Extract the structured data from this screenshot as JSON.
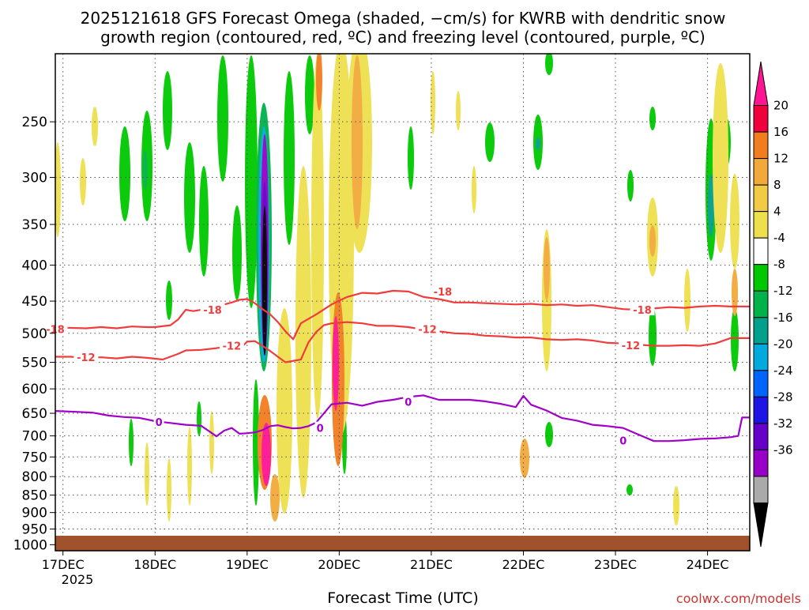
{
  "chart_data": {
    "type": "heatmap",
    "title": "2025121618 GFS Forecast Omega (shaded, −cm/s) for KWRB with dendritic snow",
    "subtitle": "growth region (contoured, red, ºC) and freezing level (contoured, purple, ºC)",
    "xlabel": "Forecast Time (UTC)",
    "ylabel": "",
    "credit": "coolwx.com/models",
    "x_ticks": [
      {
        "label": "17DEC",
        "value": 0
      },
      {
        "label": "18DEC",
        "value": 24
      },
      {
        "label": "19DEC",
        "value": 48
      },
      {
        "label": "20DEC",
        "value": 72
      },
      {
        "label": "21DEC",
        "value": 96
      },
      {
        "label": "22DEC",
        "value": 120
      },
      {
        "label": "23DEC",
        "value": 144
      },
      {
        "label": "24DEC",
        "value": 168
      }
    ],
    "x_year_label": "2025",
    "xlim": [
      -2,
      179
    ],
    "y_ticks": [
      "250",
      "300",
      "350",
      "400",
      "450",
      "500",
      "550",
      "600",
      "650",
      "700",
      "750",
      "800",
      "850",
      "900",
      "950",
      "1000"
    ],
    "ylim": [
      200,
      1020
    ],
    "y_scale": "log-pressure",
    "colorbar": {
      "labels": [
        "20",
        "16",
        "12",
        "8",
        "4",
        "-4",
        "-8",
        "-12",
        "-16",
        "-20",
        "-24",
        "-28",
        "-32",
        "-36"
      ],
      "colors": [
        "#ff1493",
        "#f0003c",
        "#f27d1f",
        "#f2a93a",
        "#f2cb45",
        "#eee04c",
        "#ffffff",
        "#00c800",
        "#00b24a",
        "#00a08c",
        "#00aadc",
        "#0064ff",
        "#1e14e6",
        "#6400c8",
        "#9600c8",
        "#aaaaaa",
        "#000000"
      ]
    },
    "series": [
      {
        "name": "-18 ºC (dendritic growth, red)",
        "label": "-18",
        "color": "#f03c3c",
        "points": [
          [
            -2,
            493
          ],
          [
            0,
            491
          ],
          [
            6,
            492
          ],
          [
            10,
            490
          ],
          [
            14,
            492
          ],
          [
            18,
            489
          ],
          [
            22,
            490
          ],
          [
            24,
            490
          ],
          [
            28,
            487
          ],
          [
            30,
            478
          ],
          [
            32,
            463
          ],
          [
            34,
            465
          ],
          [
            36,
            463
          ],
          [
            40,
            462
          ],
          [
            42,
            455
          ],
          [
            44,
            452
          ],
          [
            46,
            448
          ],
          [
            48,
            447
          ],
          [
            50,
            453
          ],
          [
            52,
            462
          ],
          [
            54,
            470
          ],
          [
            56,
            482
          ],
          [
            58,
            497
          ],
          [
            60,
            510
          ],
          [
            62,
            484
          ],
          [
            66,
            470
          ],
          [
            70,
            455
          ],
          [
            74,
            444
          ],
          [
            78,
            438
          ],
          [
            82,
            439
          ],
          [
            86,
            435
          ],
          [
            90,
            436
          ],
          [
            94,
            444
          ],
          [
            98,
            447
          ],
          [
            102,
            452
          ],
          [
            106,
            452
          ],
          [
            110,
            453
          ],
          [
            114,
            454
          ],
          [
            118,
            455
          ],
          [
            122,
            454
          ],
          [
            126,
            456
          ],
          [
            130,
            455
          ],
          [
            134,
            457
          ],
          [
            138,
            456
          ],
          [
            142,
            459
          ],
          [
            146,
            462
          ],
          [
            150,
            463
          ],
          [
            154,
            461
          ],
          [
            158,
            459
          ],
          [
            162,
            460
          ],
          [
            166,
            458
          ],
          [
            170,
            457
          ],
          [
            174,
            458
          ],
          [
            179,
            458
          ]
        ],
        "labels": [
          [
            -2,
            493
          ],
          [
            39,
            463
          ],
          [
            99,
            436
          ],
          [
            151,
            463
          ]
        ]
      },
      {
        "name": "-12 ºC (dendritic growth, red)",
        "label": "-12",
        "color": "#f03c3c",
        "points": [
          [
            -2,
            540
          ],
          [
            2,
            540
          ],
          [
            6,
            542
          ],
          [
            10,
            541
          ],
          [
            14,
            543
          ],
          [
            18,
            540
          ],
          [
            22,
            542
          ],
          [
            26,
            545
          ],
          [
            30,
            535
          ],
          [
            32,
            529
          ],
          [
            36,
            528
          ],
          [
            40,
            525
          ],
          [
            44,
            521
          ],
          [
            46,
            527
          ],
          [
            48,
            514
          ],
          [
            50,
            513
          ],
          [
            52,
            521
          ],
          [
            54,
            530
          ],
          [
            56,
            540
          ],
          [
            58,
            550
          ],
          [
            62,
            545
          ],
          [
            64,
            515
          ],
          [
            66,
            498
          ],
          [
            68,
            487
          ],
          [
            70,
            484
          ],
          [
            74,
            482
          ],
          [
            78,
            484
          ],
          [
            82,
            488
          ],
          [
            86,
            488
          ],
          [
            90,
            490
          ],
          [
            94,
            494
          ],
          [
            98,
            497
          ],
          [
            102,
            500
          ],
          [
            106,
            501
          ],
          [
            110,
            504
          ],
          [
            114,
            505
          ],
          [
            118,
            507
          ],
          [
            122,
            507
          ],
          [
            126,
            510
          ],
          [
            130,
            511
          ],
          [
            134,
            510
          ],
          [
            138,
            512
          ],
          [
            142,
            516
          ],
          [
            146,
            517
          ],
          [
            150,
            519
          ],
          [
            154,
            521
          ],
          [
            158,
            521
          ],
          [
            162,
            520
          ],
          [
            166,
            521
          ],
          [
            170,
            517
          ],
          [
            174,
            508
          ],
          [
            179,
            508
          ]
        ],
        "labels": [
          [
            6,
            541
          ],
          [
            44,
            521
          ],
          [
            95,
            493
          ],
          [
            148,
            520
          ]
        ]
      },
      {
        "name": "0 ºC freezing level (purple)",
        "label": "0",
        "color": "#a000c8",
        "points": [
          [
            -2,
            645
          ],
          [
            4,
            647
          ],
          [
            8,
            649
          ],
          [
            12,
            655
          ],
          [
            16,
            658
          ],
          [
            20,
            660
          ],
          [
            24,
            667
          ],
          [
            28,
            671
          ],
          [
            32,
            675
          ],
          [
            36,
            677
          ],
          [
            40,
            701
          ],
          [
            42,
            688
          ],
          [
            44,
            682
          ],
          [
            46,
            695
          ],
          [
            48,
            694
          ],
          [
            50,
            692
          ],
          [
            52,
            687
          ],
          [
            54,
            678
          ],
          [
            56,
            676
          ],
          [
            58,
            680
          ],
          [
            60,
            683
          ],
          [
            62,
            682
          ],
          [
            64,
            678
          ],
          [
            66,
            670
          ],
          [
            70,
            631
          ],
          [
            74,
            628
          ],
          [
            78,
            634
          ],
          [
            82,
            626
          ],
          [
            86,
            622
          ],
          [
            90,
            616
          ],
          [
            94,
            613
          ],
          [
            98,
            622
          ],
          [
            102,
            622
          ],
          [
            106,
            622
          ],
          [
            110,
            625
          ],
          [
            114,
            630
          ],
          [
            118,
            637
          ],
          [
            120,
            614
          ],
          [
            122,
            632
          ],
          [
            126,
            644
          ],
          [
            130,
            660
          ],
          [
            134,
            666
          ],
          [
            138,
            675
          ],
          [
            142,
            678
          ],
          [
            146,
            682
          ],
          [
            150,
            697
          ],
          [
            154,
            712
          ],
          [
            158,
            712
          ],
          [
            162,
            710
          ],
          [
            166,
            707
          ],
          [
            170,
            706
          ],
          [
            174,
            703
          ],
          [
            176,
            700
          ],
          [
            177,
            659
          ],
          [
            179,
            659
          ]
        ],
        "labels": [
          [
            25,
            669
          ],
          [
            67,
            682
          ],
          [
            90,
            626
          ],
          [
            146,
            711
          ]
        ]
      }
    ]
  }
}
